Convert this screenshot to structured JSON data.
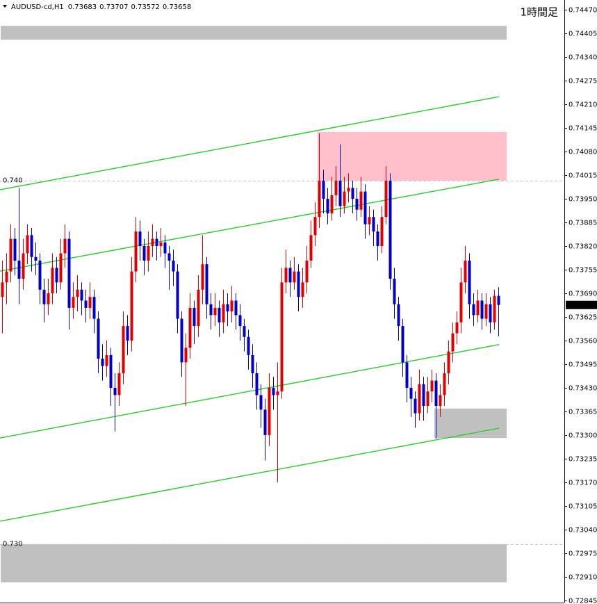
{
  "chart_data": {
    "type": "candlestick",
    "symbol": "AUDUSD-cd,H1",
    "title": "1時間足",
    "up_color": "#e00000",
    "down_color": "#0000c8",
    "ylim": [
      0.72839,
      0.74497
    ],
    "yticks": [
      {
        "value": 0.7447,
        "label": "0.74470"
      },
      0.74405,
      {
        "value": 0.7434,
        "label": "0.74340"
      },
      0.74275,
      {
        "value": 0.7421,
        "label": "0.74210"
      },
      0.74145,
      {
        "value": 0.7408,
        "label": "0.74080"
      },
      0.74015,
      {
        "value": 0.7395,
        "label": "0.73950"
      },
      0.73885,
      {
        "value": 0.7382,
        "label": "0.73820"
      },
      0.73755,
      {
        "value": 0.7369,
        "label": "0.73690"
      },
      0.73625,
      {
        "value": 0.7356,
        "label": "0.73560"
      },
      0.73495,
      {
        "value": 0.7343,
        "label": "0.73430"
      },
      0.73365,
      {
        "value": 0.733,
        "label": "0.73300"
      },
      0.73235,
      {
        "value": 0.7317,
        "label": "0.73170"
      },
      0.73105,
      {
        "value": 0.7304,
        "label": "0.73040"
      },
      0.72975,
      {
        "value": 0.7291,
        "label": "0.72910"
      },
      0.72845
    ],
    "levels": [
      {
        "value": 0.74,
        "label": "0.740"
      },
      {
        "value": 0.73,
        "label": "0.730"
      }
    ],
    "zones": [
      {
        "from": 0.74426,
        "to": 0.74388,
        "color": "#c0c0c0",
        "start_index": 0
      },
      {
        "from": 0.74134,
        "to": 0.74,
        "color": "#ffc0cb",
        "start_index": 76
      },
      {
        "from": 0.73373,
        "to": 0.73292,
        "color": "#c0c0c0",
        "start_index": 104
      },
      {
        "from": 0.73,
        "to": 0.72895,
        "color": "#c0c0c0",
        "start_index": 0
      }
    ],
    "trendlines": [
      {
        "start": 0.73975,
        "end": 0.74231,
        "color": "#3cc83c"
      },
      {
        "start": 0.73751,
        "end": 0.74004,
        "color": "#3cc83c"
      },
      {
        "start": 0.73292,
        "end": 0.73549,
        "color": "#3cc83c"
      },
      {
        "start": 0.73063,
        "end": 0.73319,
        "color": "#3cc83c"
      }
    ],
    "open": [
      0.7368,
      0.7372,
      0.7375,
      0.7384,
      0.7378,
      0.7373,
      0.738,
      0.7385,
      0.7379,
      0.7378,
      0.737,
      0.7366,
      0.7369,
      0.7376,
      0.7372,
      0.738,
      0.7384,
      0.7365,
      0.7368,
      0.737,
      0.7367,
      0.7365,
      0.7368,
      0.7362,
      0.7351,
      0.7349,
      0.7352,
      0.7343,
      0.7341,
      0.7347,
      0.736,
      0.7356,
      0.7375,
      0.7386,
      0.7382,
      0.7378,
      0.7382,
      0.7384,
      0.7382,
      0.7383,
      0.738,
      0.7378,
      0.7375,
      0.7362,
      0.735,
      0.7354,
      0.7365,
      0.736,
      0.737,
      0.7377,
      0.7366,
      0.7363,
      0.7365,
      0.7361,
      0.7366,
      0.7364,
      0.7367,
      0.7363,
      0.736,
      0.7357,
      0.7352,
      0.7347,
      0.7341,
      0.7337,
      0.733,
      0.7343,
      0.7341,
      0.7342,
      0.7372,
      0.7376,
      0.7372,
      0.7375,
      0.7368,
      0.7372,
      0.7378,
      0.7385,
      0.739,
      0.74,
      0.7395,
      0.7391,
      0.7396,
      0.74,
      0.7393,
      0.7397,
      0.7398,
      0.7395,
      0.7392,
      0.7397,
      0.7388,
      0.739,
      0.7386,
      0.7382,
      0.739,
      0.74,
      0.7373,
      0.7366,
      0.736,
      0.735,
      0.7343,
      0.734,
      0.7336,
      0.7344,
      0.7338,
      0.7342,
      0.7345,
      0.7338,
      0.7341,
      0.7347,
      0.7353,
      0.7358,
      0.7361,
      0.7372,
      0.7378,
      0.7366,
      0.7363,
      0.7367,
      0.7362,
      0.7366,
      0.7361,
      0.73683
    ],
    "high": [
      0.7378,
      0.738,
      0.7388,
      0.7387,
      0.7398,
      0.7384,
      0.7388,
      0.7387,
      0.7383,
      0.738,
      0.7373,
      0.7373,
      0.738,
      0.7379,
      0.7384,
      0.7388,
      0.7386,
      0.7372,
      0.7374,
      0.7372,
      0.737,
      0.7372,
      0.737,
      0.7364,
      0.7355,
      0.7356,
      0.7354,
      0.7347,
      0.735,
      0.7364,
      0.7363,
      0.7379,
      0.739,
      0.7389,
      0.7384,
      0.7386,
      0.7388,
      0.7386,
      0.7387,
      0.7385,
      0.7382,
      0.7381,
      0.7377,
      0.7364,
      0.7358,
      0.7369,
      0.7367,
      0.7374,
      0.7385,
      0.7379,
      0.7369,
      0.7369,
      0.7367,
      0.737,
      0.7369,
      0.7371,
      0.7369,
      0.7366,
      0.7362,
      0.7359,
      0.7355,
      0.735,
      0.7344,
      0.734,
      0.7347,
      0.7346,
      0.735,
      0.7376,
      0.7381,
      0.7378,
      0.7379,
      0.7377,
      0.7376,
      0.7382,
      0.7389,
      0.7394,
      0.7413,
      0.7403,
      0.7398,
      0.7401,
      0.7404,
      0.741,
      0.7401,
      0.7402,
      0.74,
      0.7398,
      0.7401,
      0.7399,
      0.7393,
      0.7392,
      0.7388,
      0.7393,
      0.7404,
      0.7402,
      0.7376,
      0.7368,
      0.7362,
      0.7352,
      0.7346,
      0.7342,
      0.7348,
      0.7346,
      0.7346,
      0.7348,
      0.7347,
      0.7344,
      0.735,
      0.7356,
      0.7361,
      0.7364,
      0.7376,
      0.7382,
      0.738,
      0.7369,
      0.737,
      0.7369,
      0.7369,
      0.7368,
      0.737,
      0.73707
    ],
    "low": [
      0.7358,
      0.7366,
      0.7372,
      0.7374,
      0.7366,
      0.737,
      0.7377,
      0.7375,
      0.7374,
      0.7366,
      0.7361,
      0.7363,
      0.7366,
      0.7369,
      0.737,
      0.7376,
      0.7359,
      0.7362,
      0.7364,
      0.7363,
      0.7361,
      0.7362,
      0.7358,
      0.7347,
      0.7345,
      0.7346,
      0.7338,
      0.7331,
      0.7338,
      0.7344,
      0.7352,
      0.7353,
      0.7372,
      0.7378,
      0.7374,
      0.7375,
      0.7379,
      0.7378,
      0.7379,
      0.7376,
      0.737,
      0.7371,
      0.7358,
      0.7346,
      0.7338,
      0.7351,
      0.7355,
      0.7357,
      0.7366,
      0.7362,
      0.7359,
      0.736,
      0.7357,
      0.7358,
      0.736,
      0.7361,
      0.7359,
      0.7356,
      0.7353,
      0.7348,
      0.7343,
      0.7337,
      0.7332,
      0.7323,
      0.7327,
      0.7337,
      0.7317,
      0.734,
      0.7369,
      0.7368,
      0.737,
      0.7364,
      0.7365,
      0.7369,
      0.7376,
      0.7382,
      0.7387,
      0.7391,
      0.7388,
      0.7389,
      0.7393,
      0.739,
      0.7391,
      0.7394,
      0.7391,
      0.7389,
      0.739,
      0.7384,
      0.7385,
      0.7382,
      0.7378,
      0.738,
      0.7388,
      0.737,
      0.7362,
      0.7356,
      0.7346,
      0.7339,
      0.7335,
      0.7332,
      0.7334,
      0.7334,
      0.7336,
      0.7339,
      0.7329,
      0.7335,
      0.7338,
      0.7344,
      0.735,
      0.7355,
      0.7358,
      0.7369,
      0.7362,
      0.736,
      0.7361,
      0.7359,
      0.736,
      0.7358,
      0.7359,
      0.73572
    ],
    "close": [
      0.7372,
      0.7375,
      0.7384,
      0.7378,
      0.7373,
      0.738,
      0.7385,
      0.7379,
      0.7378,
      0.737,
      0.7366,
      0.7369,
      0.7376,
      0.7372,
      0.738,
      0.7384,
      0.7365,
      0.7368,
      0.737,
      0.7367,
      0.7365,
      0.7368,
      0.7362,
      0.7351,
      0.7349,
      0.7352,
      0.7343,
      0.7341,
      0.7347,
      0.736,
      0.7356,
      0.7375,
      0.7386,
      0.7382,
      0.7378,
      0.7382,
      0.7384,
      0.7382,
      0.7383,
      0.738,
      0.7378,
      0.7375,
      0.7362,
      0.735,
      0.7354,
      0.7365,
      0.736,
      0.737,
      0.7377,
      0.7366,
      0.7363,
      0.7365,
      0.7361,
      0.7366,
      0.7364,
      0.7367,
      0.7363,
      0.736,
      0.7357,
      0.7352,
      0.7347,
      0.7341,
      0.7337,
      0.733,
      0.7343,
      0.7341,
      0.7342,
      0.7372,
      0.7376,
      0.7372,
      0.7375,
      0.7368,
      0.7372,
      0.7378,
      0.7385,
      0.739,
      0.74,
      0.7395,
      0.7391,
      0.7396,
      0.74,
      0.7393,
      0.7397,
      0.7398,
      0.7395,
      0.7392,
      0.7397,
      0.7388,
      0.739,
      0.7386,
      0.7382,
      0.739,
      0.74,
      0.7373,
      0.7366,
      0.736,
      0.735,
      0.7343,
      0.734,
      0.7336,
      0.7344,
      0.7338,
      0.7342,
      0.7345,
      0.7338,
      0.7341,
      0.7347,
      0.7353,
      0.7358,
      0.7361,
      0.7372,
      0.7378,
      0.7366,
      0.7363,
      0.7367,
      0.7362,
      0.7366,
      0.7361,
      0.73683,
      0.73658
    ]
  }
}
